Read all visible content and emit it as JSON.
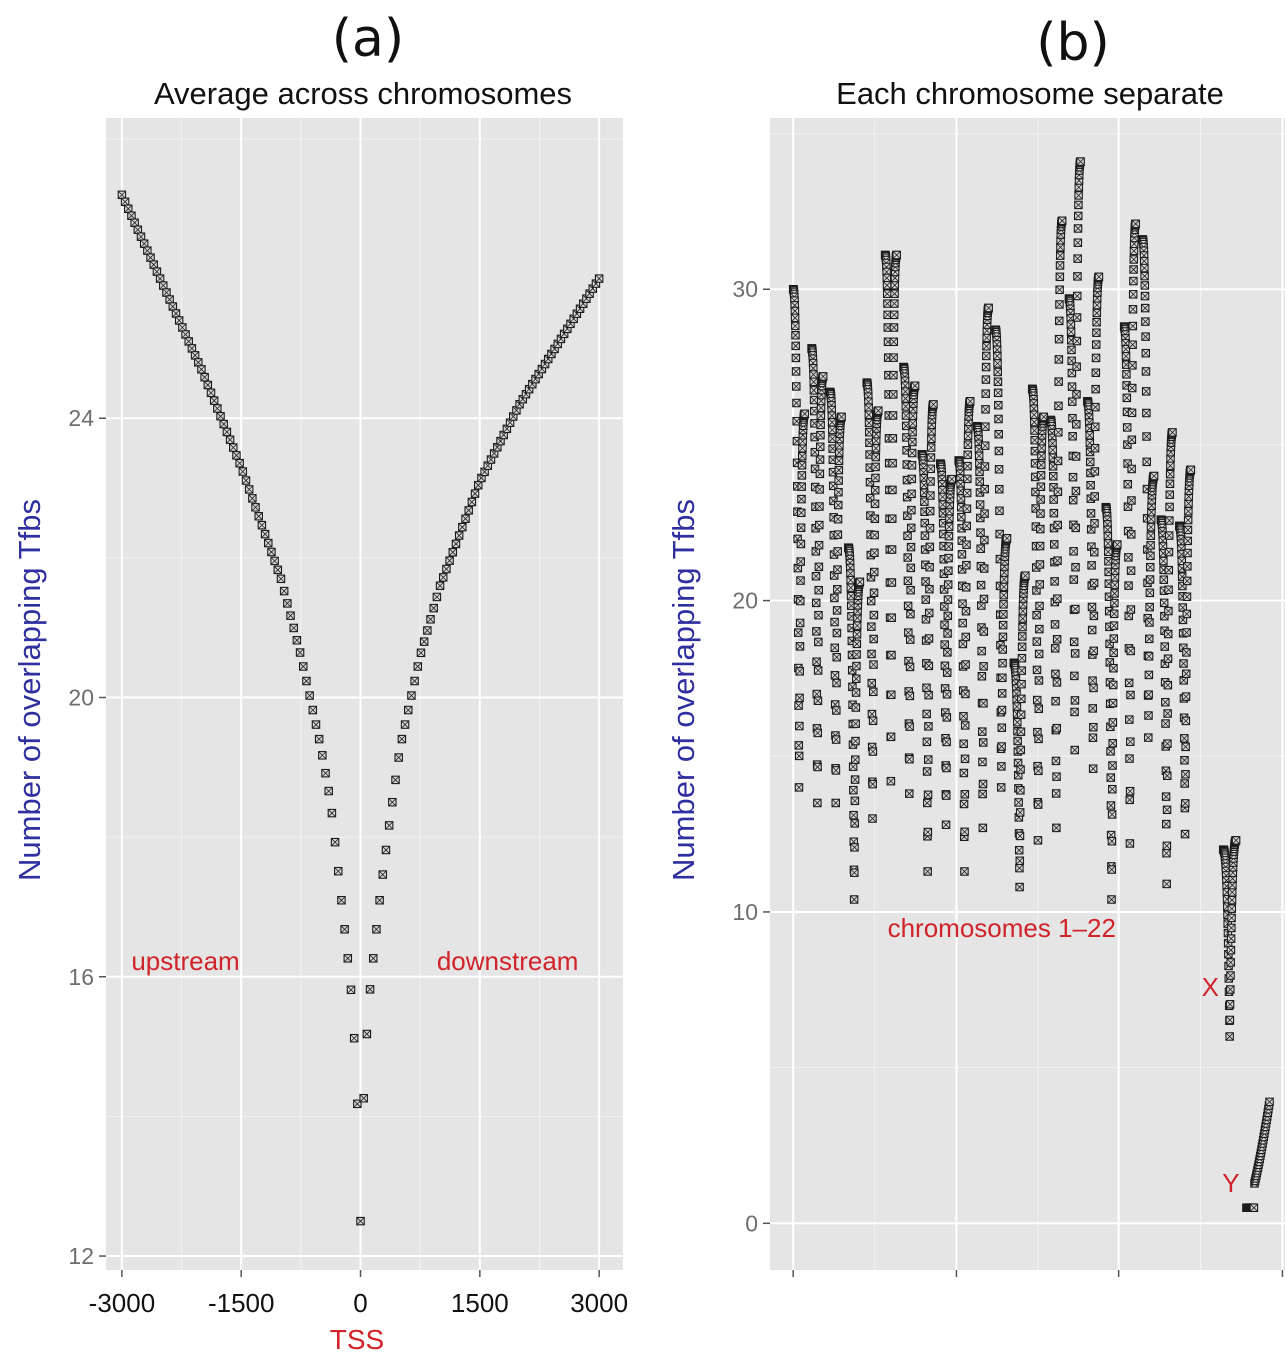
{
  "chart_data": [
    {
      "panel": "(a)",
      "type": "scatter",
      "title": "Average across chromosomes",
      "xlabel": "TSS",
      "ylabel": "Number of overlapping Tfbs",
      "xlim": [
        -3200,
        3300
      ],
      "ylim": [
        11.8,
        28.3
      ],
      "x_ticks": [
        -3000,
        -1500,
        0,
        1500,
        3000
      ],
      "x_tick_labels": [
        "-3000",
        "-1500",
        "0",
        "1500",
        "3000"
      ],
      "y_ticks": [
        12,
        16,
        20,
        24
      ],
      "y_tick_labels": [
        "12",
        "16",
        "20",
        "24"
      ],
      "grid": true,
      "annotations": [
        {
          "text": "upstream",
          "x": -2200,
          "y": 16.1
        },
        {
          "text": "downstream",
          "x": 1850,
          "y": 16.1
        }
      ],
      "series": [
        {
          "points": [
            [
              -3000,
              27.2
            ],
            [
              -2000,
              24.7
            ],
            [
              -1500,
              23.3
            ],
            [
              -1000,
              21.7
            ],
            [
              -750,
              20.6
            ],
            [
              -500,
              19.3
            ],
            [
              -375,
              18.5
            ],
            [
              -250,
              17.2
            ],
            [
              -125,
              15.9
            ],
            [
              -50,
              14.6
            ],
            [
              0,
              12.5
            ],
            [
              50,
              14.7
            ],
            [
              125,
              15.9
            ],
            [
              250,
              17.2
            ],
            [
              375,
              18.3
            ],
            [
              500,
              19.3
            ],
            [
              750,
              20.6
            ],
            [
              1000,
              21.6
            ],
            [
              1500,
              23.1
            ],
            [
              2000,
              24.2
            ],
            [
              3000,
              26.0
            ]
          ]
        }
      ]
    },
    {
      "panel": "(b)",
      "type": "scatter",
      "title": "Each chromosome separate",
      "xlabel": "",
      "ylabel": "Number of overlapping Tfbs",
      "xlim": [
        0,
        1
      ],
      "ylim": [
        -1.5,
        35.5
      ],
      "y_ticks": [
        0,
        10,
        20,
        30
      ],
      "y_tick_labels": [
        "0",
        "10",
        "20",
        "30"
      ],
      "grid": true,
      "annotations": [
        {
          "text": "chromosomes 1–22",
          "x": 0.45,
          "y": 9.2
        },
        {
          "text": "X",
          "x": 0.855,
          "y": 7.3
        },
        {
          "text": "Y",
          "x": 0.895,
          "y": 1.0
        }
      ],
      "chromosomes": [
        {
          "left": 30.0,
          "min": 14.0,
          "right": 26.0
        },
        {
          "left": 28.1,
          "min": 13.5,
          "right": 27.2
        },
        {
          "left": 26.7,
          "min": 13.5,
          "right": 25.9
        },
        {
          "left": 21.7,
          "min": 10.4,
          "right": 20.6
        },
        {
          "left": 27.0,
          "min": 13.0,
          "right": 26.1
        },
        {
          "left": 31.1,
          "min": 14.2,
          "right": 31.1
        },
        {
          "left": 27.5,
          "min": 13.8,
          "right": 26.9
        },
        {
          "left": 24.7,
          "min": 11.3,
          "right": 26.3
        },
        {
          "left": 24.4,
          "min": 12.8,
          "right": 23.9
        },
        {
          "left": 24.5,
          "min": 11.3,
          "right": 26.4
        },
        {
          "left": 25.6,
          "min": 12.7,
          "right": 29.4
        },
        {
          "left": 28.7,
          "min": 14.0,
          "right": 22.0
        },
        {
          "left": 18.0,
          "min": 10.8,
          "right": 20.8
        },
        {
          "left": 26.8,
          "min": 12.3,
          "right": 25.9
        },
        {
          "left": 25.8,
          "min": 12.7,
          "right": 32.2
        },
        {
          "left": 29.7,
          "min": 15.2,
          "right": 34.1
        },
        {
          "left": 26.4,
          "min": 14.6,
          "right": 30.4
        },
        {
          "left": 23.0,
          "min": 10.4,
          "right": 21.8
        },
        {
          "left": 28.8,
          "min": 12.2,
          "right": 32.1
        },
        {
          "left": 31.6,
          "min": 15.6,
          "right": 24.0
        },
        {
          "left": 22.6,
          "min": 10.9,
          "right": 25.4
        },
        {
          "left": 22.4,
          "min": 12.5,
          "right": 24.2
        }
      ],
      "chrX": {
        "left": 12.0,
        "min": 6.0,
        "right": 12.3
      },
      "chrY": {
        "start": 0.5,
        "end": 3.9
      }
    }
  ]
}
